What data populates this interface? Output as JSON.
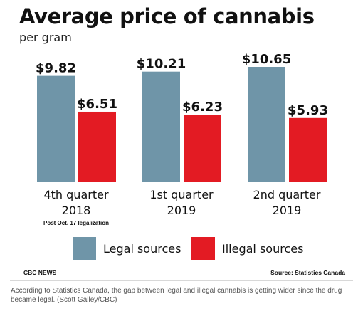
{
  "graphic": {
    "title": "Average price of cannabis",
    "subtitle": "per gram",
    "credit_left": "CBC NEWS",
    "source": "Source: Statistics Canada"
  },
  "caption": "According to Statistics Canada, the gap between legal and illegal cannabis is getting wider since the drug became legal. (Scott Galley/CBC)",
  "colors": {
    "legal": "#6f95a8",
    "illegal": "#e31b23"
  },
  "chart_data": {
    "type": "bar",
    "title": "Average price of cannabis",
    "subtitle": "per gram",
    "categories": [
      {
        "line1": "4th quarter",
        "line2": "2018",
        "note": "Post Oct. 17 legalization"
      },
      {
        "line1": "1st quarter",
        "line2": "2019",
        "note": ""
      },
      {
        "line1": "2nd quarter",
        "line2": "2019",
        "note": ""
      }
    ],
    "series": [
      {
        "name": "Legal sources",
        "values": [
          9.82,
          10.21,
          10.65
        ],
        "labels": [
          "$9.82",
          "$10.21",
          "$10.65"
        ]
      },
      {
        "name": "Illegal sources",
        "values": [
          6.51,
          6.23,
          5.93
        ],
        "labels": [
          "$6.51",
          "$6.23",
          "$5.93"
        ]
      }
    ],
    "ylim": [
      0,
      10.65
    ],
    "grid": false,
    "legend_position": "bottom"
  }
}
